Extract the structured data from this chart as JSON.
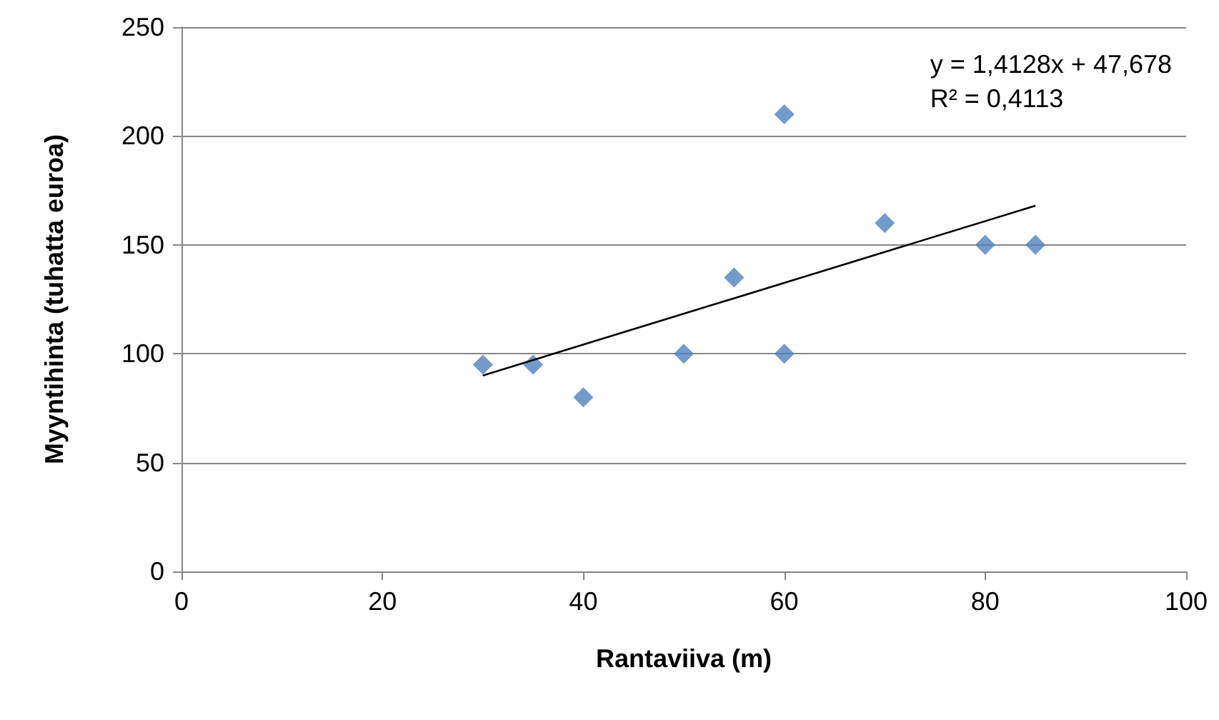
{
  "chart_data": {
    "type": "scatter",
    "xlabel": "Rantaviiva (m)",
    "ylabel": "Myyntihinta (tuhatta euroa)",
    "annotations": [
      "y = 1,4128x + 47,678",
      "R² = 0,4113"
    ],
    "series": [
      {
        "color": "#4f81bd",
        "x": [
          30,
          35,
          40,
          50,
          55,
          60,
          60,
          70,
          80,
          85
        ],
        "values": [
          95,
          95,
          80,
          100,
          135,
          210,
          100,
          160,
          150,
          150
        ],
        "marker": "diamond"
      },
      {
        "type": "line",
        "color": "#000000",
        "x": [
          30,
          85
        ],
        "values": [
          90,
          168
        ],
        "marker": "none",
        "line_style": "solid"
      }
    ],
    "xlim": [
      0,
      100
    ],
    "xticks": [
      0,
      20,
      40,
      60,
      80,
      100
    ],
    "ylim": [
      0,
      250
    ],
    "yticks": [
      0,
      50,
      100,
      150,
      200,
      250
    ],
    "grid": "y"
  }
}
